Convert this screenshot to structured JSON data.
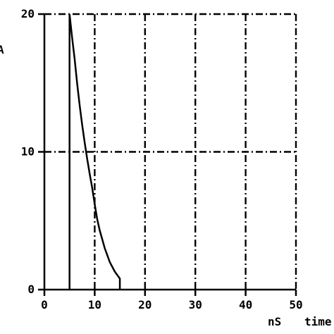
{
  "chart_data": {
    "type": "line",
    "title": "",
    "xlabel": "time",
    "x_unit": "nS",
    "ylabel": "A",
    "xlim": [
      0,
      50
    ],
    "ylim": [
      0,
      20
    ],
    "x_ticks": [
      0,
      10,
      20,
      30,
      40,
      50
    ],
    "y_ticks": [
      0,
      10,
      20
    ],
    "x_tick_labels": [
      "0",
      "10",
      "20",
      "30",
      "40",
      "50"
    ],
    "y_tick_labels": [
      "0",
      "10",
      "20"
    ],
    "grid": true,
    "grid_style": "dash-dot",
    "series": [
      {
        "x": [
          5,
          5,
          5.5,
          6,
          6.5,
          7,
          7.5,
          8,
          8.5,
          9,
          9.5,
          10,
          10.5,
          11,
          12,
          13,
          14,
          15,
          15
        ],
        "y": [
          0,
          20,
          18.3,
          16.8,
          15.0,
          13.4,
          12.0,
          10.7,
          9.5,
          8.4,
          7.4,
          6.2,
          5.1,
          4.3,
          3.0,
          2.0,
          1.3,
          0.8,
          0
        ]
      }
    ]
  }
}
